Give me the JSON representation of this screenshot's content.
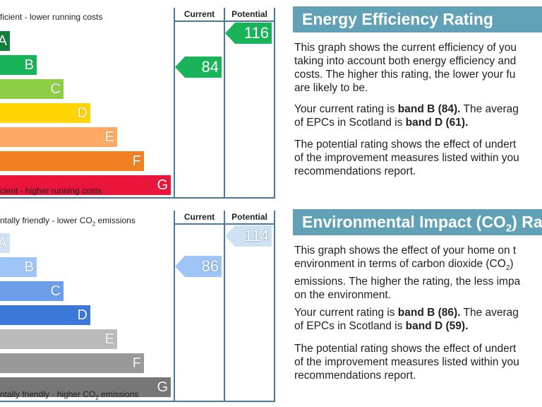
{
  "energy": {
    "top_caption": "ficient - lower running costs",
    "bottom_caption": "cient - higher running costs",
    "current_header": "Current",
    "potential_header": "Potential",
    "current_value": "84",
    "potential_value": "116",
    "bands": [
      {
        "letter": "A",
        "color": "#108040"
      },
      {
        "letter": "B",
        "color": "#19b459"
      },
      {
        "letter": "C",
        "color": "#8dce46"
      },
      {
        "letter": "D",
        "color": "#ffd500"
      },
      {
        "letter": "E",
        "color": "#fcaa65"
      },
      {
        "letter": "F",
        "color": "#ef8023"
      },
      {
        "letter": "G",
        "color": "#e9153b"
      }
    ],
    "heading": "Energy Efficiency Rating",
    "para1": [
      "This graph shows the current efficiency of you",
      "taking into account both energy efficiency and",
      "costs. The higher this rating, the lower your fu",
      "are likely to be."
    ],
    "para2_a": "Your current rating is ",
    "para2_b": "band B (84).",
    "para2_c": " The averag",
    "para2_d": "of EPCs in Scotland is ",
    "para2_e": "band D (61).",
    "para3": [
      "The potential rating shows the effect of undert",
      "of the improvement measures listed within you",
      "recommendations report."
    ]
  },
  "environment": {
    "top_caption_a": "ntally friendly - lower CO",
    "top_caption_sub": "2",
    "top_caption_b": " emissions",
    "bottom_caption_a": "ntally friendly - higher CO",
    "bottom_caption_sub": "2",
    "bottom_caption_b": " emissions",
    "current_header": "Current",
    "potential_header": "Potential",
    "current_value": "86",
    "potential_value": "114",
    "bands": [
      {
        "letter": "A",
        "color": "#cfe2f3"
      },
      {
        "letter": "B",
        "color": "#9fc5f8"
      },
      {
        "letter": "C",
        "color": "#6d9eeb"
      },
      {
        "letter": "D",
        "color": "#3c78d8"
      },
      {
        "letter": "E",
        "color": "#bbbbbb"
      },
      {
        "letter": "F",
        "color": "#999999"
      },
      {
        "letter": "G",
        "color": "#777777"
      }
    ],
    "heading_a": "Environmental Impact (CO",
    "heading_sub": "2",
    "heading_b": ") Ra",
    "para1_l1": "This graph shows the effect of your home on t",
    "para1_l2a": "environment in terms of carbon dioxide (CO",
    "para1_l2sub": "2",
    "para1_l2b": ")",
    "para1_l3": "emissions. The higher the rating, the less impa",
    "para1_l4": "on the environment.",
    "para2_a": "Your current rating is ",
    "para2_b": "band B (86).",
    "para2_c": " The averag",
    "para2_d": "of EPCs in Scotland is ",
    "para2_e": "band D (59).",
    "para3": [
      "The potential rating shows the effect of undert",
      "of the improvement measures listed within you",
      "recommendations report."
    ]
  }
}
